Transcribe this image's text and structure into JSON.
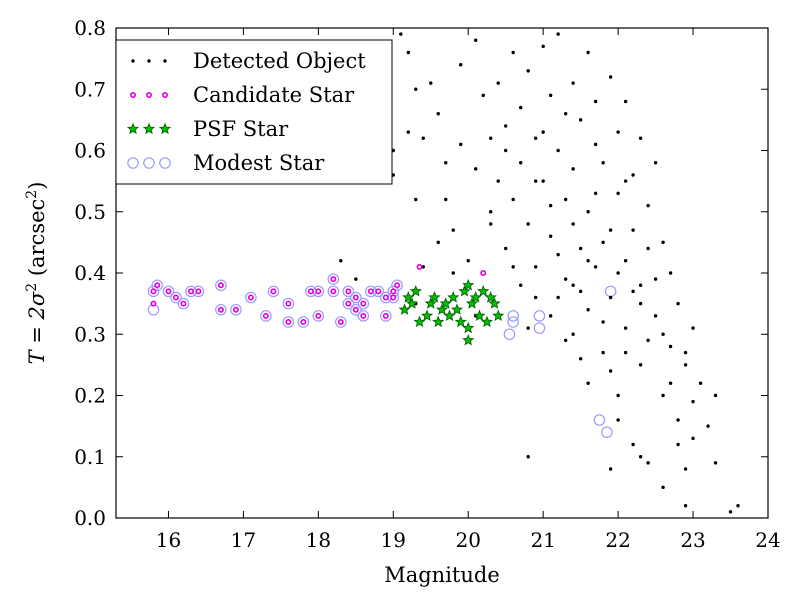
{
  "chart_data": {
    "type": "scatter",
    "xlabel": "Magnitude",
    "ylabel": {
      "main": "T = 2σ",
      "sup1": "2",
      "unit": " (arcsec",
      "sup2": "2",
      "close": ")"
    },
    "xlim": [
      15.3,
      24
    ],
    "ylim": [
      0,
      0.8
    ],
    "xticks": [
      "16",
      "17",
      "18",
      "19",
      "20",
      "21",
      "22",
      "23",
      "24"
    ],
    "yticks": [
      "0.0",
      "0.1",
      "0.2",
      "0.3",
      "0.4",
      "0.5",
      "0.6",
      "0.7",
      "0.8"
    ],
    "grid": false,
    "legend_position": "top-left",
    "colors": {
      "detected": "#000000",
      "candidate": "#e000e0",
      "psf_fill": "#00c000",
      "psf_edge": "#006400",
      "modest": "#9a9aff"
    },
    "series": [
      {
        "name": "Detected Object",
        "marker": "dot",
        "points": [
          [
            19.1,
            0.79
          ],
          [
            19.2,
            0.76
          ],
          [
            19.3,
            0.7
          ],
          [
            19.2,
            0.63
          ],
          [
            19.0,
            0.6
          ],
          [
            19.0,
            0.56
          ],
          [
            19.3,
            0.52
          ],
          [
            19.4,
            0.62
          ],
          [
            19.5,
            0.71
          ],
          [
            19.6,
            0.66
          ],
          [
            19.7,
            0.58
          ],
          [
            19.7,
            0.52
          ],
          [
            19.8,
            0.47
          ],
          [
            19.9,
            0.61
          ],
          [
            19.9,
            0.74
          ],
          [
            19.6,
            0.45
          ],
          [
            19.8,
            0.4
          ],
          [
            20.0,
            0.42
          ],
          [
            20.1,
            0.57
          ],
          [
            20.1,
            0.78
          ],
          [
            20.2,
            0.69
          ],
          [
            20.3,
            0.48
          ],
          [
            20.3,
            0.62
          ],
          [
            20.4,
            0.71
          ],
          [
            20.4,
            0.55
          ],
          [
            20.5,
            0.64
          ],
          [
            20.5,
            0.44
          ],
          [
            20.6,
            0.52
          ],
          [
            20.6,
            0.76
          ],
          [
            20.7,
            0.67
          ],
          [
            20.7,
            0.38
          ],
          [
            20.7,
            0.58
          ],
          [
            20.8,
            0.48
          ],
          [
            20.8,
            0.73
          ],
          [
            20.9,
            0.62
          ],
          [
            20.9,
            0.41
          ],
          [
            21.0,
            0.77
          ],
          [
            21.0,
            0.55
          ],
          [
            21.1,
            0.69
          ],
          [
            21.1,
            0.46
          ],
          [
            21.1,
            0.33
          ],
          [
            21.2,
            0.6
          ],
          [
            21.2,
            0.79
          ],
          [
            21.3,
            0.52
          ],
          [
            21.3,
            0.39
          ],
          [
            21.4,
            0.71
          ],
          [
            21.4,
            0.57
          ],
          [
            21.4,
            0.3
          ],
          [
            21.5,
            0.65
          ],
          [
            21.5,
            0.44
          ],
          [
            21.6,
            0.76
          ],
          [
            21.6,
            0.5
          ],
          [
            21.6,
            0.34
          ],
          [
            21.7,
            0.68
          ],
          [
            21.7,
            0.41
          ],
          [
            21.8,
            0.58
          ],
          [
            21.8,
            0.27
          ],
          [
            21.9,
            0.72
          ],
          [
            21.9,
            0.47
          ],
          [
            21.9,
            0.36
          ],
          [
            22.0,
            0.63
          ],
          [
            22.0,
            0.53
          ],
          [
            22.0,
            0.2
          ],
          [
            22.1,
            0.68
          ],
          [
            22.1,
            0.42
          ],
          [
            22.1,
            0.31
          ],
          [
            22.2,
            0.56
          ],
          [
            22.2,
            0.12
          ],
          [
            22.3,
            0.62
          ],
          [
            22.3,
            0.38
          ],
          [
            22.3,
            0.25
          ],
          [
            22.4,
            0.51
          ],
          [
            22.4,
            0.09
          ],
          [
            22.5,
            0.58
          ],
          [
            22.5,
            0.33
          ],
          [
            22.6,
            0.45
          ],
          [
            22.6,
            0.2
          ],
          [
            22.6,
            0.05
          ],
          [
            22.7,
            0.4
          ],
          [
            22.7,
            0.28
          ],
          [
            22.8,
            0.35
          ],
          [
            22.8,
            0.16
          ],
          [
            22.9,
            0.25
          ],
          [
            22.9,
            0.08
          ],
          [
            23.0,
            0.31
          ],
          [
            23.0,
            0.13
          ],
          [
            23.1,
            0.22
          ],
          [
            23.2,
            0.15
          ],
          [
            23.3,
            0.2
          ],
          [
            23.3,
            0.09
          ],
          [
            23.5,
            0.01
          ],
          [
            23.6,
            0.02
          ],
          [
            20.8,
            0.1
          ],
          [
            21.9,
            0.08
          ],
          [
            22.9,
            0.02
          ],
          [
            21.6,
            0.22
          ],
          [
            22.3,
            0.1
          ],
          [
            21.3,
            0.29
          ],
          [
            22.0,
            0.16
          ],
          [
            20.9,
            0.36
          ],
          [
            21.2,
            0.43
          ],
          [
            21.5,
            0.37
          ],
          [
            21.8,
            0.32
          ],
          [
            22.2,
            0.47
          ],
          [
            22.5,
            0.39
          ],
          [
            21.0,
            0.63
          ],
          [
            21.7,
            0.53
          ],
          [
            22.4,
            0.29
          ],
          [
            20.6,
            0.41
          ],
          [
            20.8,
            0.31
          ],
          [
            21.1,
            0.51
          ],
          [
            21.4,
            0.48
          ],
          [
            21.7,
            0.61
          ],
          [
            22.0,
            0.4
          ],
          [
            22.3,
            0.35
          ],
          [
            22.6,
            0.3
          ],
          [
            22.9,
            0.27
          ],
          [
            21.2,
            0.36
          ],
          [
            21.6,
            0.42
          ],
          [
            22.1,
            0.55
          ],
          [
            22.7,
            0.22
          ],
          [
            20.5,
            0.6
          ],
          [
            20.3,
            0.5
          ],
          [
            20.1,
            0.33
          ],
          [
            20.9,
            0.55
          ],
          [
            21.3,
            0.66
          ],
          [
            21.5,
            0.26
          ],
          [
            21.9,
            0.24
          ],
          [
            22.2,
            0.37
          ],
          [
            22.4,
            0.44
          ],
          [
            22.8,
            0.12
          ],
          [
            23.0,
            0.19
          ],
          [
            22.1,
            0.27
          ],
          [
            21.8,
            0.45
          ],
          [
            21.4,
            0.38
          ],
          [
            19.4,
            0.41
          ],
          [
            19.3,
            0.35
          ],
          [
            18.5,
            0.39
          ],
          [
            18.3,
            0.42
          ]
        ]
      },
      {
        "name": "Candidate Star",
        "marker": "small-circle",
        "points": [
          [
            15.8,
            0.37
          ],
          [
            15.8,
            0.35
          ],
          [
            15.85,
            0.38
          ],
          [
            16.0,
            0.37
          ],
          [
            16.1,
            0.36
          ],
          [
            16.2,
            0.35
          ],
          [
            16.3,
            0.37
          ],
          [
            16.4,
            0.37
          ],
          [
            16.7,
            0.38
          ],
          [
            16.7,
            0.34
          ],
          [
            16.9,
            0.34
          ],
          [
            17.1,
            0.36
          ],
          [
            17.3,
            0.33
          ],
          [
            17.4,
            0.37
          ],
          [
            17.6,
            0.32
          ],
          [
            17.6,
            0.35
          ],
          [
            17.8,
            0.32
          ],
          [
            17.9,
            0.37
          ],
          [
            18.0,
            0.33
          ],
          [
            18.0,
            0.37
          ],
          [
            18.2,
            0.37
          ],
          [
            18.2,
            0.39
          ],
          [
            18.3,
            0.32
          ],
          [
            18.4,
            0.35
          ],
          [
            18.4,
            0.37
          ],
          [
            18.5,
            0.34
          ],
          [
            18.5,
            0.36
          ],
          [
            18.6,
            0.33
          ],
          [
            18.6,
            0.35
          ],
          [
            18.7,
            0.37
          ],
          [
            18.8,
            0.37
          ],
          [
            18.9,
            0.33
          ],
          [
            18.9,
            0.36
          ],
          [
            19.0,
            0.37
          ],
          [
            19.0,
            0.36
          ],
          [
            19.05,
            0.38
          ],
          [
            19.35,
            0.41
          ],
          [
            20.2,
            0.4
          ]
        ]
      },
      {
        "name": "PSF Star",
        "marker": "star",
        "points": [
          [
            19.15,
            0.34
          ],
          [
            19.2,
            0.36
          ],
          [
            19.25,
            0.35
          ],
          [
            19.3,
            0.37
          ],
          [
            19.35,
            0.32
          ],
          [
            19.45,
            0.33
          ],
          [
            19.5,
            0.35
          ],
          [
            19.55,
            0.36
          ],
          [
            19.6,
            0.32
          ],
          [
            19.65,
            0.34
          ],
          [
            19.7,
            0.35
          ],
          [
            19.75,
            0.33
          ],
          [
            19.8,
            0.36
          ],
          [
            19.85,
            0.34
          ],
          [
            19.9,
            0.32
          ],
          [
            19.95,
            0.37
          ],
          [
            20.0,
            0.31
          ],
          [
            20.0,
            0.38
          ],
          [
            20.05,
            0.35
          ],
          [
            20.1,
            0.36
          ],
          [
            20.15,
            0.33
          ],
          [
            20.2,
            0.37
          ],
          [
            20.25,
            0.32
          ],
          [
            20.3,
            0.36
          ],
          [
            20.35,
            0.35
          ],
          [
            20.4,
            0.33
          ],
          [
            20.0,
            0.29
          ]
        ]
      },
      {
        "name": "Modest Star",
        "marker": "open-circle",
        "points": [
          [
            15.8,
            0.37
          ],
          [
            15.8,
            0.34
          ],
          [
            15.85,
            0.38
          ],
          [
            16.0,
            0.37
          ],
          [
            16.1,
            0.36
          ],
          [
            16.2,
            0.35
          ],
          [
            16.3,
            0.37
          ],
          [
            16.4,
            0.37
          ],
          [
            16.7,
            0.38
          ],
          [
            16.7,
            0.34
          ],
          [
            16.9,
            0.34
          ],
          [
            17.1,
            0.36
          ],
          [
            17.3,
            0.33
          ],
          [
            17.4,
            0.37
          ],
          [
            17.6,
            0.32
          ],
          [
            17.6,
            0.35
          ],
          [
            17.8,
            0.32
          ],
          [
            17.9,
            0.37
          ],
          [
            18.0,
            0.33
          ],
          [
            18.0,
            0.37
          ],
          [
            18.2,
            0.37
          ],
          [
            18.2,
            0.39
          ],
          [
            18.3,
            0.32
          ],
          [
            18.4,
            0.35
          ],
          [
            18.4,
            0.37
          ],
          [
            18.5,
            0.34
          ],
          [
            18.5,
            0.36
          ],
          [
            18.6,
            0.33
          ],
          [
            18.6,
            0.35
          ],
          [
            18.7,
            0.37
          ],
          [
            18.8,
            0.37
          ],
          [
            18.9,
            0.33
          ],
          [
            18.9,
            0.36
          ],
          [
            19.0,
            0.37
          ],
          [
            19.0,
            0.36
          ],
          [
            19.05,
            0.38
          ],
          [
            20.6,
            0.33
          ],
          [
            20.6,
            0.32
          ],
          [
            20.55,
            0.3
          ],
          [
            20.95,
            0.31
          ],
          [
            20.95,
            0.33
          ],
          [
            21.75,
            0.16
          ],
          [
            21.85,
            0.14
          ],
          [
            21.9,
            0.37
          ]
        ]
      }
    ]
  }
}
